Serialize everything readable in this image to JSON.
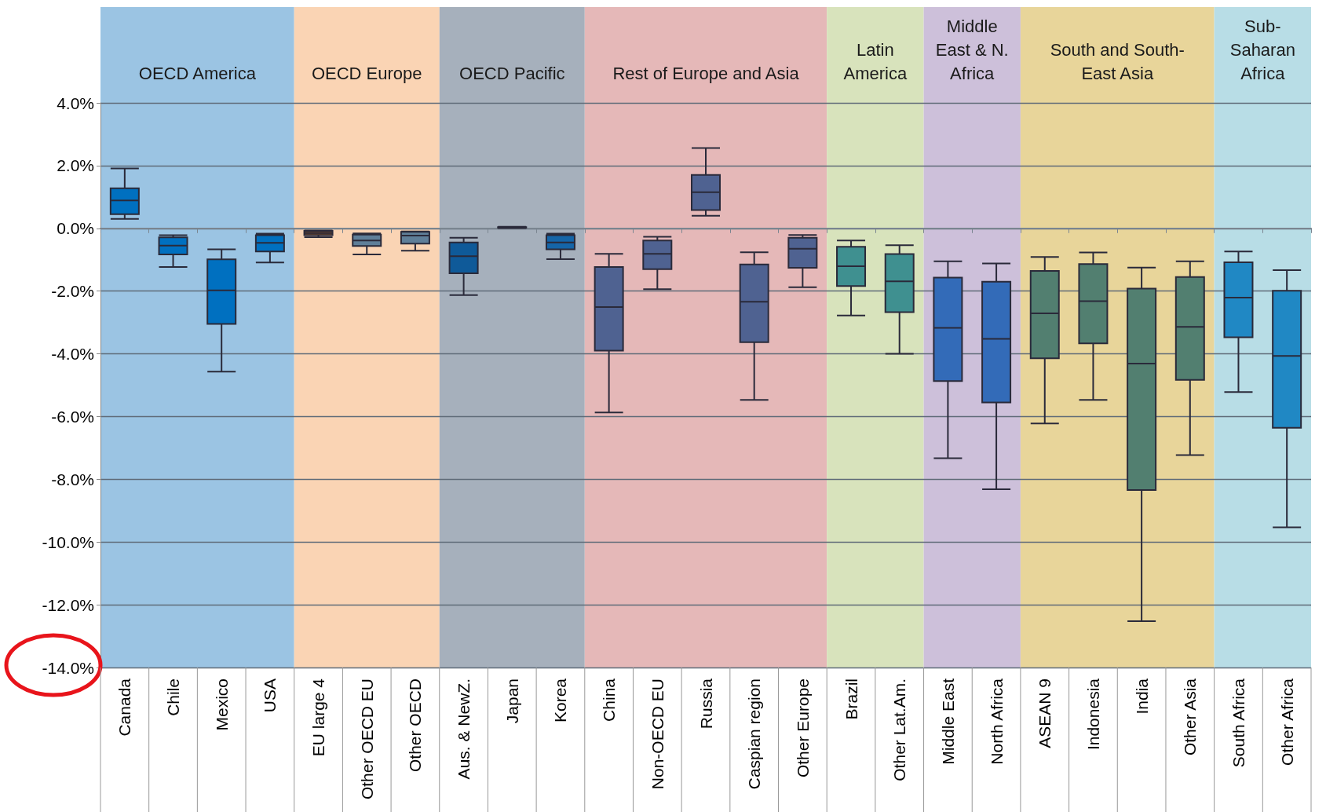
{
  "chart_data": {
    "type": "box",
    "categories": [
      "Canada",
      "Chile",
      "Mexico",
      "USA",
      "EU large 4",
      "Other OECD EU",
      "Other OECD",
      "Aus. & NewZ.",
      "Japan",
      "Korea",
      "China",
      "Non-OECD EU",
      "Russia",
      "Caspian region",
      "Other Europe",
      "Brazil",
      "Other Lat.Am.",
      "Middle East",
      "North Africa",
      "ASEAN 9",
      "Indonesia",
      "India",
      "Other Asia",
      "South Africa",
      "Other Africa"
    ],
    "boxes": [
      {
        "low": 0.3,
        "q1": 0.45,
        "median": 0.89,
        "q3": 1.28,
        "high": 1.91
      },
      {
        "low": -1.23,
        "q1": -0.83,
        "median": -0.55,
        "q3": -0.29,
        "high": -0.22
      },
      {
        "low": -4.57,
        "q1": -3.05,
        "median": -1.98,
        "q3": -0.99,
        "high": -0.67
      },
      {
        "low": -1.09,
        "q1": -0.74,
        "median": -0.46,
        "q3": -0.22,
        "high": -0.17
      },
      {
        "low": -0.28,
        "q1": -0.22,
        "median": -0.15,
        "q3": -0.08,
        "high": -0.07
      },
      {
        "low": -0.83,
        "q1": -0.56,
        "median": -0.39,
        "q3": -0.2,
        "high": -0.16
      },
      {
        "low": -0.71,
        "q1": -0.49,
        "median": -0.23,
        "q3": -0.11,
        "high": -0.1
      },
      {
        "low": -2.13,
        "q1": -1.43,
        "median": -0.89,
        "q3": -0.45,
        "high": -0.3
      },
      {
        "low": 0.01,
        "q1": 0.02,
        "median": 0.03,
        "q3": 0.04,
        "high": 0.05
      },
      {
        "low": -0.98,
        "q1": -0.67,
        "median": -0.45,
        "q3": -0.22,
        "high": -0.17
      },
      {
        "low": -5.87,
        "q1": -3.9,
        "median": -2.51,
        "q3": -1.23,
        "high": -0.81
      },
      {
        "low": -1.94,
        "q1": -1.3,
        "median": -0.81,
        "q3": -0.39,
        "high": -0.27
      },
      {
        "low": 0.4,
        "q1": 0.58,
        "median": 1.15,
        "q3": 1.7,
        "high": 2.56
      },
      {
        "low": -5.47,
        "q1": -3.63,
        "median": -2.34,
        "q3": -1.15,
        "high": -0.76
      },
      {
        "low": -1.88,
        "q1": -1.26,
        "median": -0.65,
        "q3": -0.3,
        "high": -0.21
      },
      {
        "low": -2.78,
        "q1": -1.84,
        "median": -1.21,
        "q3": -0.59,
        "high": -0.39
      },
      {
        "low": -4.0,
        "q1": -2.67,
        "median": -1.69,
        "q3": -0.82,
        "high": -0.54
      },
      {
        "low": -7.33,
        "q1": -4.87,
        "median": -3.17,
        "q3": -1.57,
        "high": -1.05
      },
      {
        "low": -8.32,
        "q1": -5.55,
        "median": -3.52,
        "q3": -1.7,
        "high": -1.12
      },
      {
        "low": -6.22,
        "q1": -4.14,
        "median": -2.71,
        "q3": -1.36,
        "high": -0.91
      },
      {
        "low": -5.47,
        "q1": -3.67,
        "median": -2.32,
        "q3": -1.14,
        "high": -0.77
      },
      {
        "low": -12.52,
        "q1": -8.34,
        "median": -4.31,
        "q3": -1.92,
        "high": -1.25
      },
      {
        "low": -7.23,
        "q1": -4.83,
        "median": -3.14,
        "q3": -1.55,
        "high": -1.05
      },
      {
        "low": -5.22,
        "q1": -3.47,
        "median": -2.21,
        "q3": -1.08,
        "high": -0.74
      },
      {
        "low": -9.53,
        "q1": -6.36,
        "median": -4.07,
        "q3": -1.99,
        "high": -1.33
      }
    ],
    "colors": [
      "#0070c0",
      "#0070c0",
      "#0070c0",
      "#0070c0",
      "#7a4a24",
      "#5f7f99",
      "#5f7f99",
      "#0f5a99",
      "#1a3a5a",
      "#1565a8",
      "#4f6291",
      "#4f6291",
      "#4f6291",
      "#4f6291",
      "#4f6291",
      "#3f9090",
      "#3f9090",
      "#336bb8",
      "#336bb8",
      "#527f70",
      "#527f70",
      "#527f70",
      "#527f70",
      "#2088c4",
      "#2088c4"
    ],
    "bands": [
      {
        "axis": "x",
        "from": "Canada",
        "to": "USA",
        "label": "OECD America",
        "color": "#9bc4e3"
      },
      {
        "axis": "x",
        "from": "EU large 4",
        "to": "Other OECD",
        "label": "OECD Europe",
        "color": "#fad4b4"
      },
      {
        "axis": "x",
        "from": "Aus. & NewZ.",
        "to": "Korea",
        "label": "OECD Pacific",
        "color": "#a6b0bc"
      },
      {
        "axis": "x",
        "from": "China",
        "to": "Other Europe",
        "label": "Rest of Europe and Asia",
        "color": "#e5b8b8"
      },
      {
        "axis": "x",
        "from": "Brazil",
        "to": "Other Lat.Am.",
        "label": "Latin America",
        "color": "#d8e3bc"
      },
      {
        "axis": "x",
        "from": "Middle East",
        "to": "North Africa",
        "label": "Middle East & N. Africa",
        "color": "#cdc0da"
      },
      {
        "axis": "x",
        "from": "ASEAN 9",
        "to": "Other Asia",
        "label": "South and South-East Asia",
        "color": "#e8d59a"
      },
      {
        "axis": "x",
        "from": "South Africa",
        "to": "Other Africa",
        "label": "Sub-Saharan Africa",
        "color": "#b8dde6"
      }
    ],
    "ylim": [
      -14,
      4
    ],
    "yticks": [
      {
        "value": -14,
        "label": "-14.0%"
      },
      {
        "value": -12,
        "label": "-12.0%"
      },
      {
        "value": -10,
        "label": "-10.0%"
      },
      {
        "value": -8,
        "label": "-8.0%"
      },
      {
        "value": -6,
        "label": "-6.0%"
      },
      {
        "value": -4,
        "label": "-4.0%"
      },
      {
        "value": -2,
        "label": "-2.0%"
      },
      {
        "value": 0,
        "label": "0.0%"
      },
      {
        "value": 2,
        "label": "2.0%"
      },
      {
        "value": 4,
        "label": "4.0%"
      }
    ],
    "grid": "y"
  }
}
